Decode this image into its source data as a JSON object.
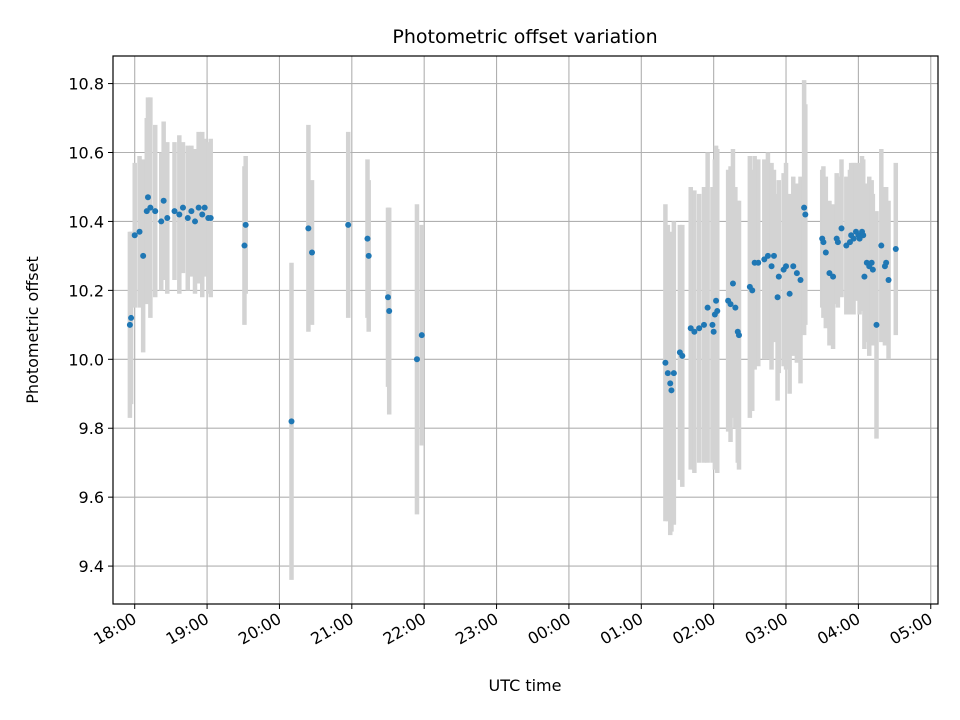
{
  "chart_data": {
    "type": "scatter",
    "title": "Photometric offset variation",
    "xlabel": "UTC time",
    "ylabel": "Photometric offset",
    "x_ticks": [
      "18:00",
      "19:00",
      "20:00",
      "21:00",
      "22:00",
      "23:00",
      "00:00",
      "01:00",
      "02:00",
      "03:00",
      "04:00",
      "05:00"
    ],
    "y_ticks": [
      "9.4",
      "9.6",
      "9.8",
      "10.0",
      "10.2",
      "10.4",
      "10.6",
      "10.8"
    ],
    "xlim_hours": [
      17.7,
      29.1
    ],
    "ylim": [
      9.29,
      10.88
    ],
    "grid": true,
    "colors": {
      "point": "#1f77b4",
      "errorbar": "#d3d3d3",
      "grid": "#b0b0b0"
    },
    "points": [
      {
        "t": "17:56",
        "y": 10.1,
        "err": 0.27
      },
      {
        "t": "17:57",
        "y": 10.12,
        "err": 0.25
      },
      {
        "t": "18:00",
        "y": 10.36,
        "err": 0.21
      },
      {
        "t": "18:04",
        "y": 10.37,
        "err": 0.22
      },
      {
        "t": "18:07",
        "y": 10.3,
        "err": 0.28
      },
      {
        "t": "18:10",
        "y": 10.43,
        "err": 0.27
      },
      {
        "t": "18:11",
        "y": 10.47,
        "err": 0.29
      },
      {
        "t": "18:13",
        "y": 10.44,
        "err": 0.32
      },
      {
        "t": "18:17",
        "y": 10.43,
        "err": 0.25
      },
      {
        "t": "18:22",
        "y": 10.4,
        "err": 0.2
      },
      {
        "t": "18:24",
        "y": 10.46,
        "err": 0.23
      },
      {
        "t": "18:27",
        "y": 10.41,
        "err": 0.22
      },
      {
        "t": "18:33",
        "y": 10.43,
        "err": 0.2
      },
      {
        "t": "18:37",
        "y": 10.42,
        "err": 0.23
      },
      {
        "t": "18:40",
        "y": 10.44,
        "err": 0.19
      },
      {
        "t": "18:44",
        "y": 10.41,
        "err": 0.21
      },
      {
        "t": "18:47",
        "y": 10.43,
        "err": 0.19
      },
      {
        "t": "18:50",
        "y": 10.4,
        "err": 0.21
      },
      {
        "t": "18:53",
        "y": 10.44,
        "err": 0.22
      },
      {
        "t": "18:56",
        "y": 10.42,
        "err": 0.24
      },
      {
        "t": "18:58",
        "y": 10.44,
        "err": 0.2
      },
      {
        "t": "19:01",
        "y": 10.41,
        "err": 0.22
      },
      {
        "t": "19:03",
        "y": 10.41,
        "err": 0.23
      },
      {
        "t": "19:31",
        "y": 10.33,
        "err": 0.23
      },
      {
        "t": "19:32",
        "y": 10.39,
        "err": 0.2
      },
      {
        "t": "20:10",
        "y": 9.82,
        "err": 0.46
      },
      {
        "t": "20:24",
        "y": 10.38,
        "err": 0.3
      },
      {
        "t": "20:27",
        "y": 10.31,
        "err": 0.21
      },
      {
        "t": "20:57",
        "y": 10.39,
        "err": 0.27
      },
      {
        "t": "21:13",
        "y": 10.35,
        "err": 0.23
      },
      {
        "t": "21:14",
        "y": 10.3,
        "err": 0.22
      },
      {
        "t": "21:30",
        "y": 10.18,
        "err": 0.26
      },
      {
        "t": "21:31",
        "y": 10.14,
        "err": 0.3
      },
      {
        "t": "21:54",
        "y": 10.0,
        "err": 0.45
      },
      {
        "t": "21:58",
        "y": 10.07,
        "err": 0.32
      },
      {
        "t": "25:20",
        "y": 9.99,
        "err": 0.46
      },
      {
        "t": "25:22",
        "y": 9.96,
        "err": 0.43
      },
      {
        "t": "25:24",
        "y": 9.93,
        "err": 0.44
      },
      {
        "t": "25:25",
        "y": 9.91,
        "err": 0.41
      },
      {
        "t": "25:27",
        "y": 9.96,
        "err": 0.44
      },
      {
        "t": "25:32",
        "y": 10.02,
        "err": 0.37
      },
      {
        "t": "25:34",
        "y": 10.01,
        "err": 0.38
      },
      {
        "t": "25:41",
        "y": 10.09,
        "err": 0.41
      },
      {
        "t": "25:44",
        "y": 10.08,
        "err": 0.41
      },
      {
        "t": "25:48",
        "y": 10.09,
        "err": 0.39
      },
      {
        "t": "25:52",
        "y": 10.1,
        "err": 0.4
      },
      {
        "t": "25:55",
        "y": 10.15,
        "err": 0.45
      },
      {
        "t": "25:59",
        "y": 10.1,
        "err": 0.4
      },
      {
        "t": "26:00",
        "y": 10.08,
        "err": 0.36
      },
      {
        "t": "26:01",
        "y": 10.13,
        "err": 0.45
      },
      {
        "t": "26:02",
        "y": 10.17,
        "err": 0.45
      },
      {
        "t": "26:03",
        "y": 10.14,
        "err": 0.47
      },
      {
        "t": "26:12",
        "y": 10.17,
        "err": 0.38
      },
      {
        "t": "26:14",
        "y": 10.16,
        "err": 0.4
      },
      {
        "t": "26:16",
        "y": 10.22,
        "err": 0.39
      },
      {
        "t": "26:18",
        "y": 10.15,
        "err": 0.35
      },
      {
        "t": "26:20",
        "y": 10.08,
        "err": 0.38
      },
      {
        "t": "26:21",
        "y": 10.07,
        "err": 0.39
      },
      {
        "t": "26:30",
        "y": 10.21,
        "err": 0.38
      },
      {
        "t": "26:32",
        "y": 10.2,
        "err": 0.35
      },
      {
        "t": "26:34",
        "y": 10.28,
        "err": 0.31
      },
      {
        "t": "26:37",
        "y": 10.28,
        "err": 0.3
      },
      {
        "t": "26:42",
        "y": 10.29,
        "err": 0.29
      },
      {
        "t": "26:45",
        "y": 10.3,
        "err": 0.3
      },
      {
        "t": "26:48",
        "y": 10.27,
        "err": 0.3
      },
      {
        "t": "26:50",
        "y": 10.3,
        "err": 0.25
      },
      {
        "t": "26:53",
        "y": 10.18,
        "err": 0.3
      },
      {
        "t": "26:54",
        "y": 10.24,
        "err": 0.28
      },
      {
        "t": "26:58",
        "y": 10.26,
        "err": 0.28
      },
      {
        "t": "27:00",
        "y": 10.27,
        "err": 0.3
      },
      {
        "t": "27:03",
        "y": 10.19,
        "err": 0.29
      },
      {
        "t": "27:06",
        "y": 10.27,
        "err": 0.26
      },
      {
        "t": "27:09",
        "y": 10.25,
        "err": 0.26
      },
      {
        "t": "27:12",
        "y": 10.23,
        "err": 0.3
      },
      {
        "t": "27:15",
        "y": 10.44,
        "err": 0.37
      },
      {
        "t": "27:16",
        "y": 10.42,
        "err": 0.32
      },
      {
        "t": "27:30",
        "y": 10.35,
        "err": 0.2
      },
      {
        "t": "27:31",
        "y": 10.34,
        "err": 0.22
      },
      {
        "t": "27:33",
        "y": 10.31,
        "err": 0.22
      },
      {
        "t": "27:36",
        "y": 10.25,
        "err": 0.21
      },
      {
        "t": "27:39",
        "y": 10.24,
        "err": 0.21
      },
      {
        "t": "27:42",
        "y": 10.35,
        "err": 0.19
      },
      {
        "t": "27:43",
        "y": 10.34,
        "err": 0.19
      },
      {
        "t": "27:46",
        "y": 10.38,
        "err": 0.2
      },
      {
        "t": "27:50",
        "y": 10.33,
        "err": 0.2
      },
      {
        "t": "27:53",
        "y": 10.34,
        "err": 0.21
      },
      {
        "t": "27:54",
        "y": 10.36,
        "err": 0.21
      },
      {
        "t": "27:56",
        "y": 10.35,
        "err": 0.22
      },
      {
        "t": "27:58",
        "y": 10.37,
        "err": 0.2
      },
      {
        "t": "28:00",
        "y": 10.36,
        "err": 0.19
      },
      {
        "t": "28:01",
        "y": 10.35,
        "err": 0.22
      },
      {
        "t": "28:03",
        "y": 10.37,
        "err": 0.22
      },
      {
        "t": "28:04",
        "y": 10.36,
        "err": 0.22
      },
      {
        "t": "28:05",
        "y": 10.24,
        "err": 0.21
      },
      {
        "t": "28:07",
        "y": 10.28,
        "err": 0.23
      },
      {
        "t": "28:09",
        "y": 10.27,
        "err": 0.26
      },
      {
        "t": "28:11",
        "y": 10.28,
        "err": 0.24
      },
      {
        "t": "28:12",
        "y": 10.26,
        "err": 0.22
      },
      {
        "t": "28:15",
        "y": 10.1,
        "err": 0.33
      },
      {
        "t": "28:19",
        "y": 10.33,
        "err": 0.28
      },
      {
        "t": "28:22",
        "y": 10.27,
        "err": 0.23
      },
      {
        "t": "28:23",
        "y": 10.28,
        "err": 0.22
      },
      {
        "t": "28:25",
        "y": 10.23,
        "err": 0.23
      },
      {
        "t": "28:31",
        "y": 10.32,
        "err": 0.25
      }
    ]
  }
}
